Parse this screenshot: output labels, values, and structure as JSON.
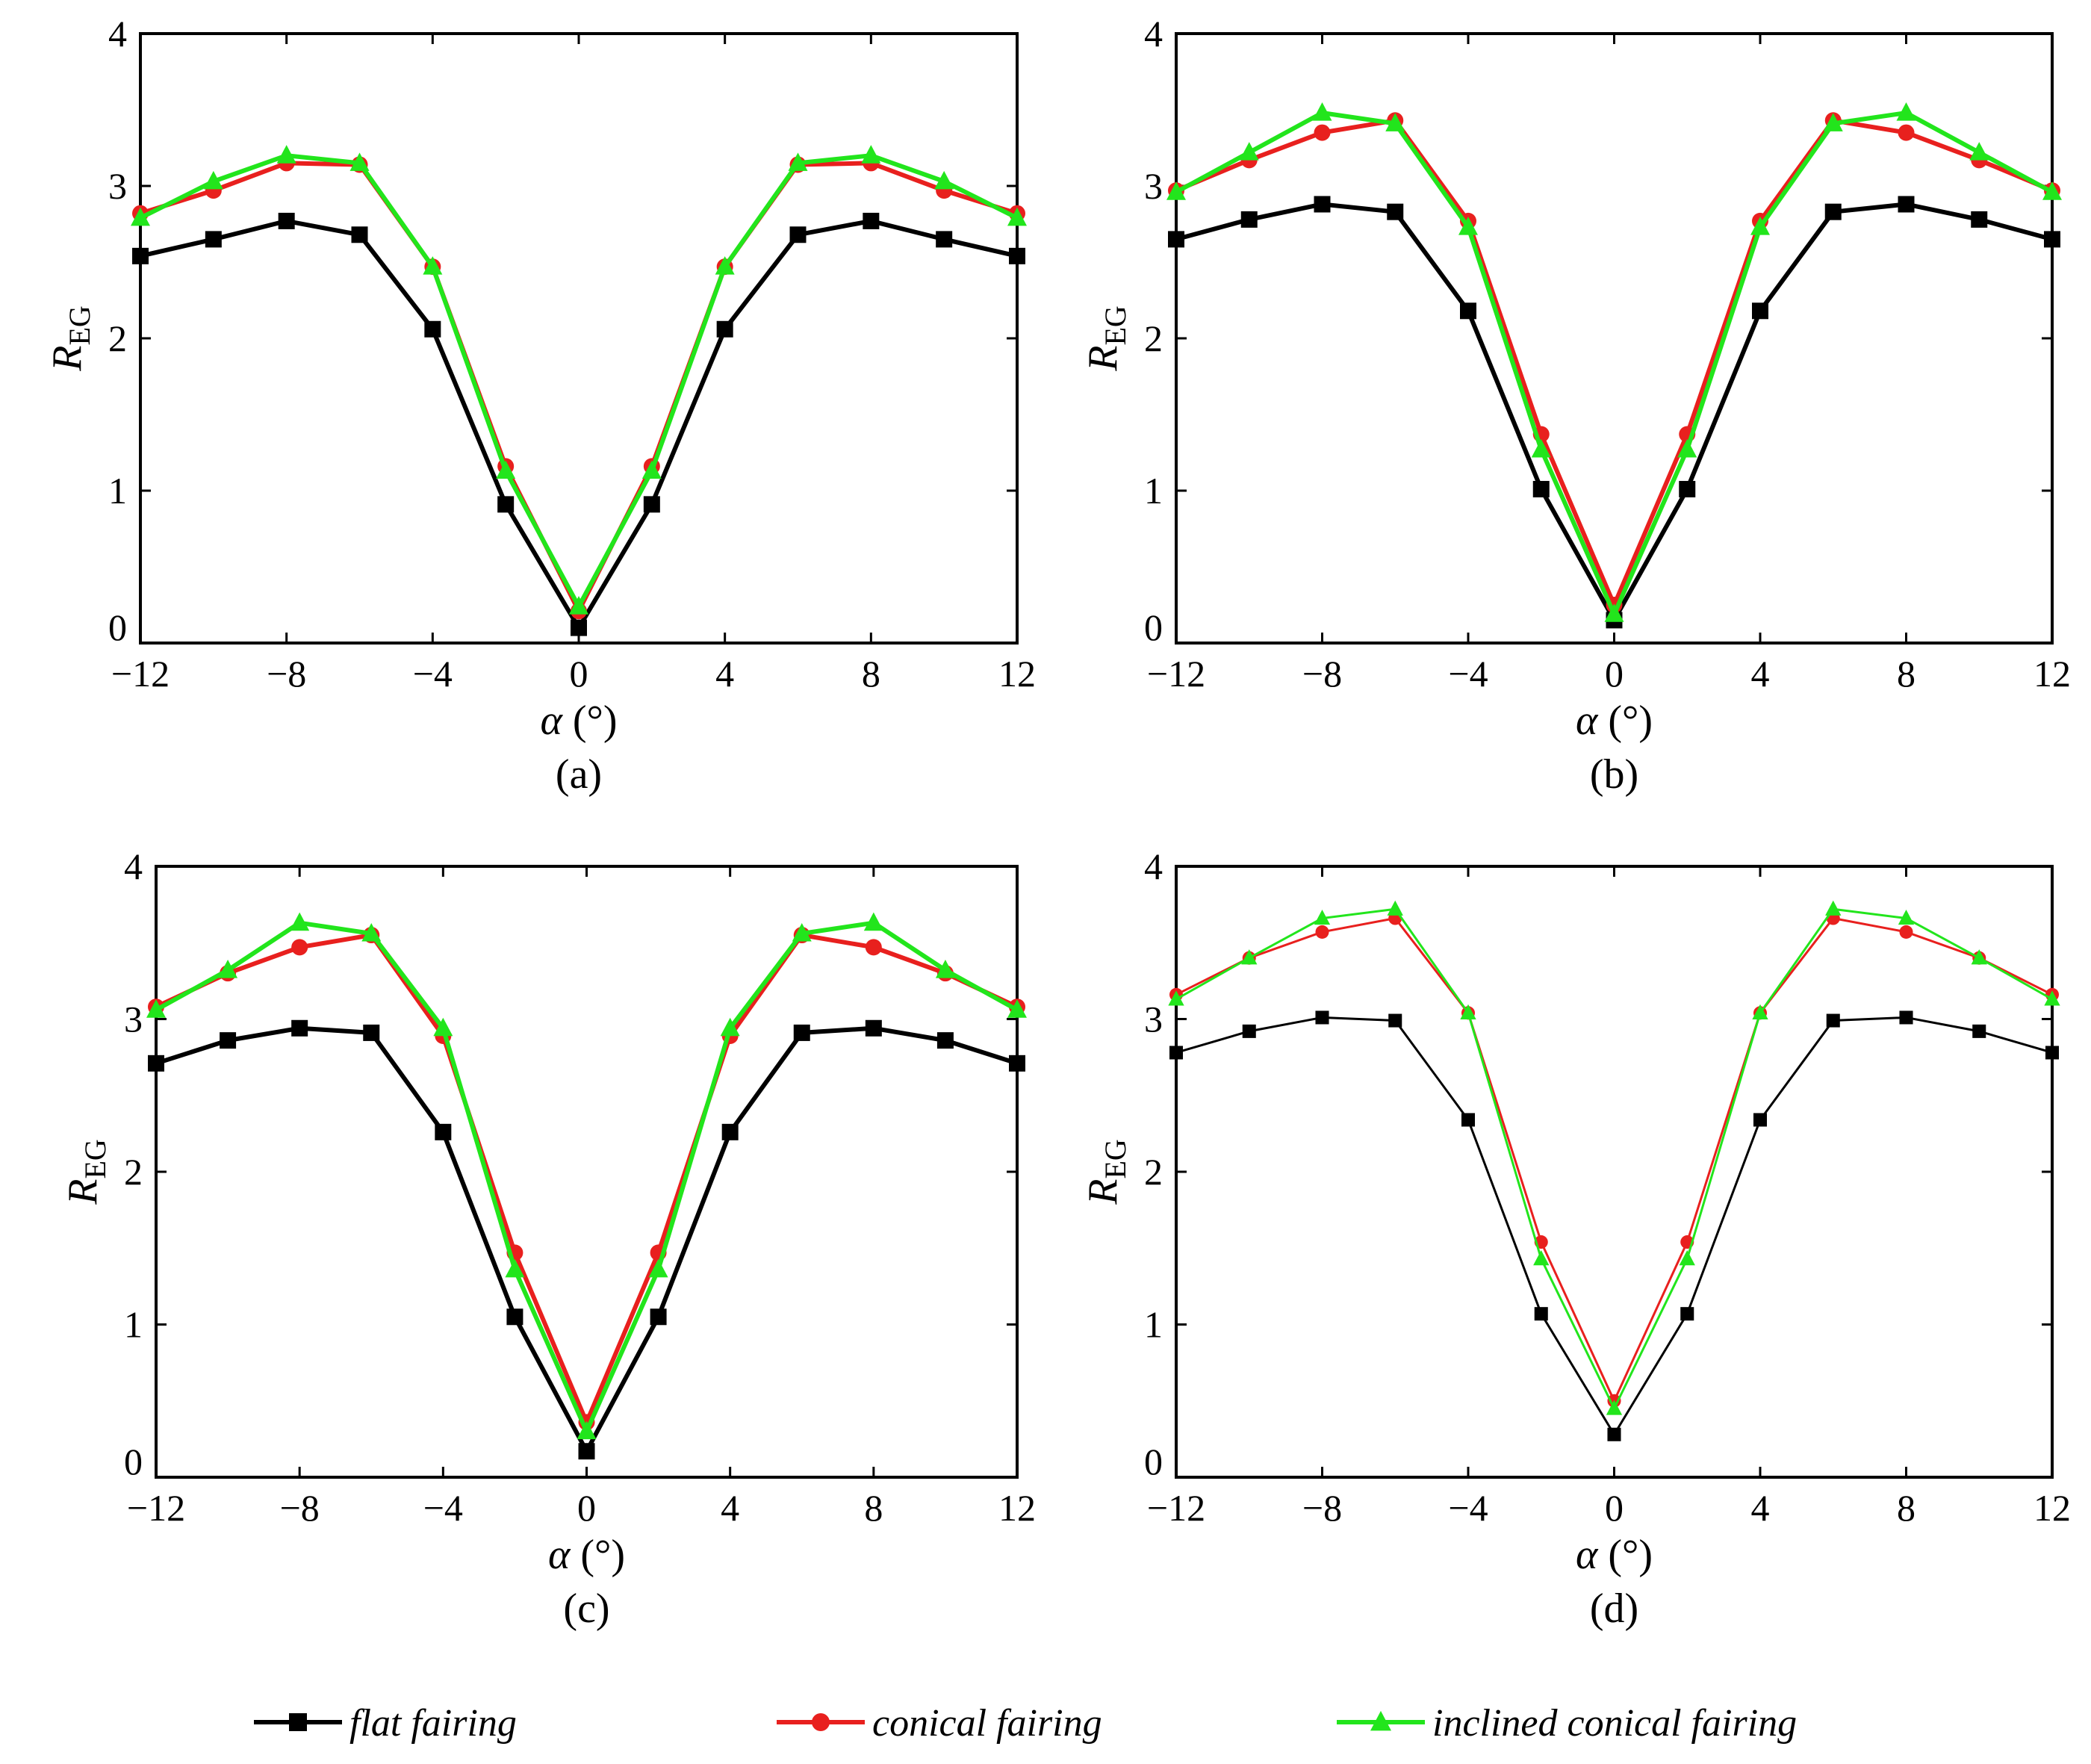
{
  "chart_data": [
    {
      "type": "line",
      "panel_label": "(a)",
      "xlabel_symbol": "α",
      "xlabel_unit": " (°)",
      "ylabel_main": "R",
      "ylabel_sub": "EG",
      "xlim": [
        -12,
        12
      ],
      "ylim": [
        0,
        4
      ],
      "xticks": [
        -12,
        -8,
        -4,
        0,
        4,
        8,
        12
      ],
      "xtick_labels": [
        "−12",
        "−8",
        "−4",
        "0",
        "4",
        "8",
        "12"
      ],
      "yticks": [
        0,
        1,
        2,
        3,
        4
      ],
      "ytick_labels": [
        "0",
        "1",
        "2",
        "3",
        "4"
      ],
      "x": [
        -12,
        -10,
        -8,
        -6,
        -4,
        -2,
        0,
        2,
        4,
        6,
        8,
        10,
        12
      ],
      "series": [
        {
          "name": "flat fairing",
          "values": [
            2.54,
            2.65,
            2.77,
            2.68,
            2.06,
            0.91,
            0.1,
            0.91,
            2.06,
            2.68,
            2.77,
            2.65,
            2.54
          ]
        },
        {
          "name": "conical fairing",
          "values": [
            2.82,
            2.97,
            3.15,
            3.14,
            2.47,
            1.16,
            0.21,
            1.16,
            2.47,
            3.14,
            3.15,
            2.97,
            2.82
          ]
        },
        {
          "name": "inclined conical fairing",
          "values": [
            2.79,
            3.03,
            3.2,
            3.15,
            2.47,
            1.13,
            0.24,
            1.13,
            2.47,
            3.15,
            3.2,
            3.03,
            2.79
          ]
        }
      ]
    },
    {
      "type": "line",
      "panel_label": "(b)",
      "xlabel_symbol": "α",
      "xlabel_unit": " (°)",
      "ylabel_main": "R",
      "ylabel_sub": "EG",
      "xlim": [
        -12,
        12
      ],
      "ylim": [
        0,
        4
      ],
      "xticks": [
        -12,
        -8,
        -4,
        0,
        4,
        8,
        12
      ],
      "xtick_labels": [
        "−12",
        "−8",
        "−4",
        "0",
        "4",
        "8",
        "12"
      ],
      "yticks": [
        0,
        1,
        2,
        3,
        4
      ],
      "ytick_labels": [
        "0",
        "1",
        "2",
        "3",
        "4"
      ],
      "x": [
        -12,
        -10,
        -8,
        -6,
        -4,
        -2,
        0,
        2,
        4,
        6,
        8,
        10,
        12
      ],
      "series": [
        {
          "name": "flat fairing",
          "values": [
            2.65,
            2.78,
            2.88,
            2.83,
            2.18,
            1.01,
            0.15,
            1.01,
            2.18,
            2.83,
            2.88,
            2.78,
            2.65
          ]
        },
        {
          "name": "conical fairing",
          "values": [
            2.97,
            3.17,
            3.35,
            3.43,
            2.77,
            1.37,
            0.25,
            1.37,
            2.77,
            3.43,
            3.35,
            3.17,
            2.97
          ]
        },
        {
          "name": "inclined conical fairing",
          "values": [
            2.96,
            3.22,
            3.48,
            3.41,
            2.73,
            1.27,
            0.19,
            1.27,
            2.73,
            3.41,
            3.48,
            3.22,
            2.96
          ]
        }
      ]
    },
    {
      "type": "line",
      "panel_label": "(c)",
      "xlabel_symbol": "α",
      "xlabel_unit": " (°)",
      "ylabel_main": "R",
      "ylabel_sub": "EG",
      "xlim": [
        -12,
        12
      ],
      "ylim": [
        0,
        4
      ],
      "xticks": [
        -12,
        -8,
        -4,
        0,
        4,
        8,
        12
      ],
      "xtick_labels": [
        "−12",
        "−8",
        "−4",
        "0",
        "4",
        "8",
        "12"
      ],
      "yticks": [
        0,
        1,
        2,
        3,
        4
      ],
      "ytick_labels": [
        "0",
        "1",
        "2",
        "3",
        "4"
      ],
      "x": [
        -12,
        -10,
        -8,
        -6,
        -4,
        -2,
        0,
        2,
        4,
        6,
        8,
        10,
        12
      ],
      "series": [
        {
          "name": "flat fairing",
          "values": [
            2.71,
            2.86,
            2.94,
            2.91,
            2.26,
            1.05,
            0.17,
            1.05,
            2.26,
            2.91,
            2.94,
            2.86,
            2.71
          ]
        },
        {
          "name": "conical fairing",
          "values": [
            3.08,
            3.3,
            3.47,
            3.55,
            2.89,
            1.47,
            0.36,
            1.47,
            2.89,
            3.55,
            3.47,
            3.3,
            3.08
          ]
        },
        {
          "name": "inclined conical fairing",
          "values": [
            3.06,
            3.32,
            3.63,
            3.56,
            2.94,
            1.36,
            0.3,
            1.36,
            2.94,
            3.56,
            3.63,
            3.32,
            3.06
          ]
        }
      ]
    },
    {
      "type": "line",
      "panel_label": "(d)",
      "xlabel_symbol": "α",
      "xlabel_unit": " (°)",
      "ylabel_main": "R",
      "ylabel_sub": "EG",
      "xlim": [
        -12,
        12
      ],
      "ylim": [
        0,
        4
      ],
      "xticks": [
        -12,
        -8,
        -4,
        0,
        4,
        8,
        12
      ],
      "xtick_labels": [
        "−12",
        "−8",
        "−4",
        "0",
        "4",
        "8",
        "12"
      ],
      "yticks": [
        0,
        1,
        2,
        3,
        4
      ],
      "ytick_labels": [
        "0",
        "1",
        "2",
        "3",
        "4"
      ],
      "x": [
        -12,
        -10,
        -8,
        -6,
        -4,
        -2,
        0,
        2,
        4,
        6,
        8,
        10,
        12
      ],
      "series": [
        {
          "name": "flat fairing",
          "values": [
            2.78,
            2.92,
            3.01,
            2.99,
            2.34,
            1.07,
            0.28,
            1.07,
            2.34,
            2.99,
            3.01,
            2.92,
            2.78
          ]
        },
        {
          "name": "conical fairing",
          "values": [
            3.16,
            3.4,
            3.57,
            3.66,
            3.04,
            1.54,
            0.5,
            1.54,
            3.04,
            3.66,
            3.57,
            3.4,
            3.16
          ]
        },
        {
          "name": "inclined conical fairing",
          "values": [
            3.13,
            3.4,
            3.66,
            3.72,
            3.04,
            1.43,
            0.45,
            1.43,
            3.04,
            3.72,
            3.66,
            3.4,
            3.13
          ]
        }
      ]
    }
  ],
  "legend": {
    "position": "bottom",
    "items": [
      {
        "label": "flat fairing",
        "marker": "square",
        "color": "#000000"
      },
      {
        "label": "conical fairing",
        "marker": "circle",
        "color": "#e8201e"
      },
      {
        "label": "inclined conical fairing",
        "marker": "triangle",
        "color": "#22e51c"
      }
    ]
  },
  "colors": {
    "flat fairing": "#000000",
    "conical fairing": "#e8201e",
    "inclined conical fairing": "#22e51c"
  }
}
